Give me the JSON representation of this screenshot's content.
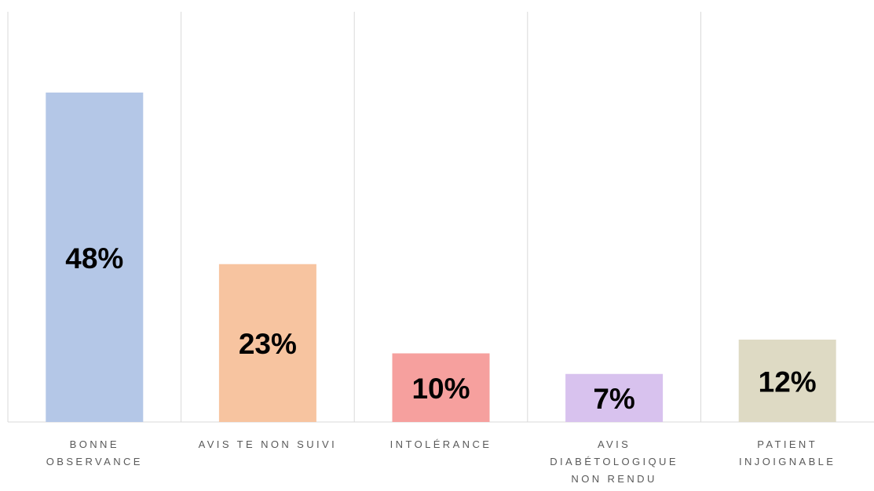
{
  "chart_data": {
    "type": "bar",
    "categories": [
      "BONNE OBSERVANCE",
      "AVIS TE NON SUIVI",
      "INTOLÉRANCE",
      "AVIS DIABÉTOLOGIQUE NON RENDU",
      "PATIENT INJOIGNABLE"
    ],
    "values": [
      48,
      23,
      10,
      7,
      12
    ],
    "value_labels": [
      "48%",
      "23%",
      "10%",
      "7%",
      "12%"
    ],
    "colors": [
      "#b4c7e7",
      "#f7c4a0",
      "#f6a09e",
      "#d8c2ee",
      "#dedac4"
    ]
  }
}
